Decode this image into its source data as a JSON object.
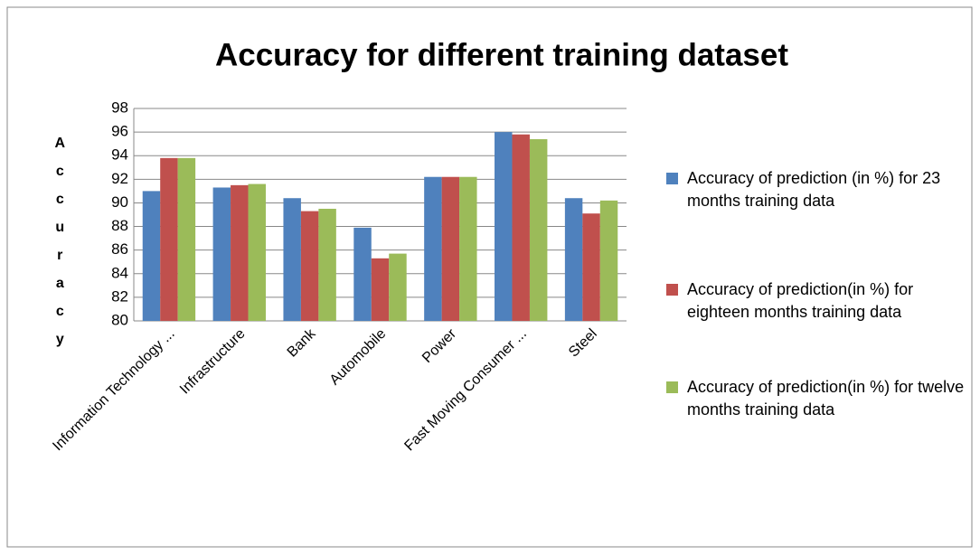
{
  "chart_data": {
    "type": "bar",
    "title": "Accuracy for different training dataset",
    "y_label": "Accuracy",
    "categories": [
      "Information Technology ...",
      "Infrastructure",
      "Bank",
      "Automobile",
      "Power",
      "Fast Moving Consumer ...",
      "Steel"
    ],
    "series": [
      {
        "name": "Accuracy of prediction (in %) for 23 months training data",
        "color": "#4f81bd",
        "values": [
          91.0,
          91.3,
          90.4,
          87.9,
          92.2,
          96.0,
          90.4
        ]
      },
      {
        "name": "Accuracy of prediction(in %) for eighteen months training data",
        "color": "#c0504d",
        "values": [
          93.8,
          91.5,
          89.3,
          85.3,
          92.2,
          95.8,
          89.1
        ]
      },
      {
        "name": "Accuracy of prediction(in %) for twelve months training data",
        "color": "#9bbb59",
        "values": [
          93.8,
          91.6,
          89.5,
          85.7,
          92.2,
          95.4,
          90.2
        ]
      }
    ],
    "ylim": [
      80,
      98
    ],
    "yticks": [
      80,
      82,
      84,
      86,
      88,
      90,
      92,
      94,
      96,
      98
    ],
    "grid": true,
    "legend": "right"
  }
}
